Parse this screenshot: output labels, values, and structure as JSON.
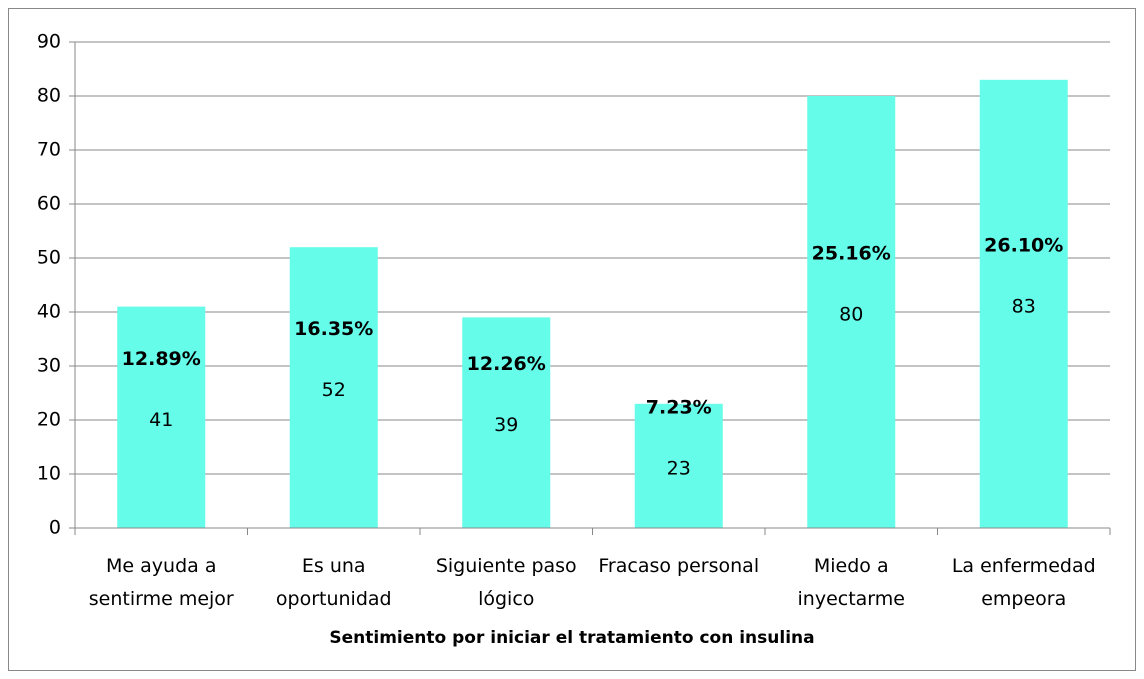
{
  "chart_data": {
    "type": "bar",
    "x_label": "Sentimiento por iniciar  el tratamiento con insulina",
    "categories": [
      "Me ayuda a sentirme mejor",
      "Es una oportunidad",
      "Siguiente paso lógico",
      "Fracaso personal",
      "Miedo a inyectarme",
      "La enfermedad empeora"
    ],
    "values": [
      41,
      52,
      39,
      23,
      80,
      83
    ],
    "percent_labels": [
      "12.89%",
      "16.35%",
      "12.26%",
      "7.23%",
      "25.16%",
      "26.10%"
    ],
    "color": "#66fcea",
    "ylim": [
      0,
      90
    ],
    "yticks": [
      0,
      10,
      20,
      30,
      40,
      50,
      60,
      70,
      80,
      90
    ],
    "grid": true
  }
}
